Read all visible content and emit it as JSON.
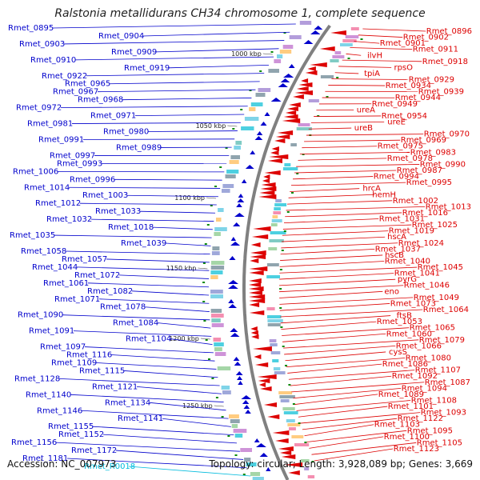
{
  "title": "Ralstonia metallidurans CH34 chromosome 1, complete sequence",
  "footer": {
    "accession": "Accession: NC_007973",
    "stats": "Topology: circular; Length: 3,928,089 bp; Genes: 3,669"
  },
  "colors": {
    "forward_genes": "#0000cc",
    "reverse_genes": "#dd0000",
    "rna_genes": "#00bbdd",
    "backbone": "#808080",
    "scale_ticks": "#0a8a0a"
  },
  "scale_labels": [
    "1000 kbp",
    "1050 kbp",
    "1100 kbp",
    "1150 kbp",
    "1200 kbp",
    "1250 kbp"
  ],
  "left_labels": [
    "Rmet_0895",
    "Rmet_0904",
    "Rmet_0903",
    "Rmet_0909",
    "Rmet_0910",
    "Rmet_0919",
    "Rmet_0922",
    "Rmet_0965",
    "Rmet_0967",
    "Rmet_0968",
    "Rmet_0972",
    "Rmet_0971",
    "Rmet_0981",
    "Rmet_0980",
    "Rmet_0991",
    "Rmet_0989",
    "Rmet_0997",
    "Rmet_0993",
    "Rmet_1006",
    "Rmet_0996",
    "Rmet_1014",
    "Rmet_1003",
    "Rmet_1012",
    "Rmet_1033",
    "Rmet_1032",
    "Rmet_1018",
    "Rmet_1035",
    "Rmet_1039",
    "Rmet_1058",
    "Rmet_1057",
    "Rmet_1044",
    "Rmet_1072",
    "Rmet_1061",
    "Rmet_1082",
    "Rmet_1071",
    "Rmet_1078",
    "Rmet_1090",
    "Rmet_1084",
    "Rmet_1091",
    "Rmet_1104",
    "Rmet_1097",
    "Rmet_1116",
    "Rmet_1109",
    "Rmet_1115",
    "Rmet_1128",
    "Rmet_1121",
    "Rmet_1140",
    "Rmet_1134",
    "Rmet_1146",
    "Rmet_1141",
    "Rmet_1155",
    "Rmet_1152",
    "Rmet_1156",
    "Rmet_1172",
    "Rmet_1181",
    "Rmet_R0018"
  ],
  "right_labels": [
    "Rmet_0896",
    "Rmet_0902",
    "Rmet_0901",
    "Rmet_0911",
    "ilvH",
    "Rmet_0918",
    "rpsO",
    "tpiA",
    "Rmet_0929",
    "Rmet_0934",
    "Rmet_0939",
    "Rmet_0944",
    "Rmet_0949",
    "ureA",
    "Rmet_0954",
    "ureE",
    "ureB",
    "Rmet_0970",
    "Rmet_0969",
    "Rmet_0975",
    "Rmet_0983",
    "Rmet_0978",
    "Rmet_0990",
    "Rmet_0987",
    "Rmet_0994",
    "Rmet_0995",
    "hrcA",
    "hemH",
    "Rmet_1002",
    "Rmet_1013",
    "Rmet_1016",
    "Rmet_1031",
    "Rmet_1025",
    "Rmet_1019",
    "hscA",
    "Rmet_1024",
    "Rmet_1037",
    "hscB",
    "Rmet_1040",
    "Rmet_1045",
    "Rmet_1041",
    "pyrG",
    "Rmet_1046",
    "eno",
    "Rmet_1049",
    "Rmet_1073",
    "Rmet_1064",
    "ftsB",
    "Rmet_1053",
    "Rmet_1065",
    "Rmet_1060",
    "Rmet_1079",
    "Rmet_1066",
    "cysS",
    "Rmet_1080",
    "Rmet_1086",
    "Rmet_1107",
    "Rmet_1092",
    "Rmet_1087",
    "Rmet_1094",
    "Rmet_1089",
    "Rmet_1108",
    "Rmet_1101",
    "Rmet_1093",
    "Rmet_1122",
    "Rmet_1103",
    "Rmet_1095",
    "Rmet_1100",
    "Rmet_1105",
    "Rmet_1123"
  ]
}
